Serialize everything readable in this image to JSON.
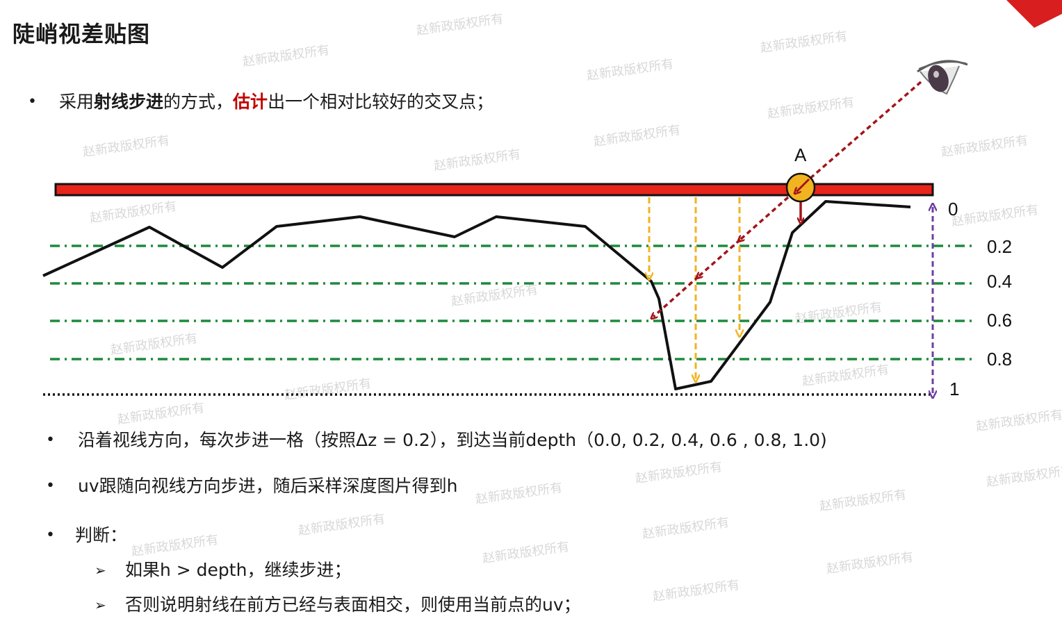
{
  "slide": {
    "title": "陡峭视差贴图"
  },
  "bullets": {
    "b1": {
      "p1": "采用",
      "p2": "射线步进",
      "p3": "的方式，",
      "p4": "估计",
      "p5": "出一个相对比较好的交叉点；"
    },
    "b2": "沿着视线方向，每次步进一格（按照Δz = 0.2），到达当前depth（0.0, 0.2, 0.4, 0.6 , 0.8, 1.0)",
    "b3": "uv跟随向视线方向步进，随后采样深度图片得到h",
    "b4": "判断：",
    "sub1": "如果h > depth，继续步进；",
    "sub2": "否则说明射线在前方已经与表面相交，则使用当前点的uv；"
  },
  "diagram": {
    "point_label": "A",
    "depth_labels": [
      "0",
      "0.2",
      "0.4",
      "0.6",
      "0.8",
      "1"
    ],
    "colors": {
      "surface": "#e8251a",
      "ray": "#a3141a",
      "step_arrows": "#f2b320",
      "depth_lines": "#1d8a3c",
      "depth_axis": "#6b3fa0",
      "point": "#f2b320"
    }
  },
  "watermark": "赵新政版权所有",
  "icons": [
    "eye-icon",
    "arrow-bullet-icon"
  ]
}
